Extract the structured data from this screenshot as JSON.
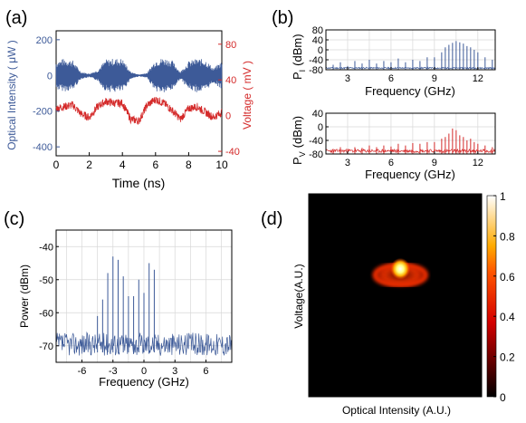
{
  "figure": {
    "colors": {
      "blue": "#3d5a98",
      "red": "#d42a2a",
      "grid": "#d8d8d8",
      "axis": "#000000"
    }
  },
  "chart_data": [
    {
      "id": "a",
      "panel_label": "(a)",
      "type": "line",
      "title": "",
      "xlabel": "Time (ns)",
      "ylabel": "Optical Intensity ( μW )",
      "ylabel_right": "Voltage ( mV )",
      "xlim": [
        0,
        10
      ],
      "ylim": [
        -450,
        250
      ],
      "ylim_right": [
        -45,
        95
      ],
      "xticks": [
        "0",
        "2",
        "4",
        "6",
        "8",
        "10"
      ],
      "yticks": [
        "200",
        "0",
        "-200",
        "-400"
      ],
      "yticks_right": [
        "80",
        "40",
        "0",
        "-40"
      ],
      "grid": false,
      "series": [
        {
          "axis": "left",
          "color": "#3d5a98",
          "x": [
            0,
            0.5,
            1,
            1.5,
            2,
            2.5,
            3,
            3.5,
            4,
            4.5,
            5,
            5.5,
            6,
            6.5,
            7,
            7.5,
            8,
            8.5,
            9,
            9.5,
            10
          ],
          "y_upper": [
            80,
            95,
            85,
            20,
            10,
            30,
            90,
            95,
            95,
            20,
            5,
            15,
            90,
            100,
            85,
            20,
            80,
            95,
            90,
            40,
            80
          ],
          "y_lower": [
            -80,
            -90,
            -85,
            -20,
            -10,
            -30,
            -90,
            -95,
            -95,
            -20,
            -5,
            -15,
            -90,
            -100,
            -85,
            -20,
            -80,
            -95,
            -90,
            -40,
            -80
          ]
        },
        {
          "axis": "right",
          "color": "#d42a2a",
          "x": [
            0,
            0.5,
            1,
            1.5,
            2,
            2.5,
            3,
            3.5,
            4,
            4.5,
            5,
            5.5,
            6,
            6.5,
            7,
            7.5,
            8,
            8.5,
            9,
            9.5,
            10
          ],
          "y": [
            8,
            10,
            12,
            2,
            -2,
            10,
            16,
            14,
            14,
            -4,
            -6,
            12,
            18,
            14,
            6,
            -4,
            8,
            10,
            4,
            -2,
            4
          ]
        }
      ]
    },
    {
      "id": "b1",
      "panel_label": "(b)",
      "type": "bar",
      "title": "",
      "xlabel": "Frequency (GHz)",
      "ylabel": "P_I (dBm)",
      "ylabel_main": "P",
      "ylabel_sub": "I",
      "ylabel_unit": "(dBm)",
      "xlim": [
        1.5,
        13.2
      ],
      "ylim": [
        -80,
        80
      ],
      "xticks": [
        "3",
        "6",
        "9",
        "12"
      ],
      "yticks": [
        "80",
        "40",
        "0",
        "-40",
        "-80"
      ],
      "grid": true,
      "color": "#3d5a98",
      "x": [
        2,
        2.5,
        3,
        3.5,
        4,
        4.5,
        5,
        5.5,
        6,
        6.5,
        7,
        7.5,
        8,
        8.5,
        9,
        9.5,
        9.75,
        10,
        10.25,
        10.5,
        10.75,
        11,
        11.25,
        11.5,
        11.75,
        12,
        12.5,
        13
      ],
      "values": [
        -60,
        -50,
        -65,
        -45,
        -55,
        -40,
        -55,
        -45,
        -50,
        -35,
        -50,
        -40,
        -45,
        -30,
        -30,
        -10,
        10,
        20,
        28,
        35,
        30,
        25,
        15,
        10,
        0,
        -10,
        -30,
        -40
      ]
    },
    {
      "id": "b2",
      "panel_label": "",
      "type": "bar",
      "title": "",
      "xlabel": "Frequency (GHz)",
      "ylabel": "P_V (dBm)",
      "ylabel_main": "P",
      "ylabel_sub": "V",
      "ylabel_unit": "(dBm)",
      "xlim": [
        1.5,
        13.2
      ],
      "ylim": [
        -80,
        40
      ],
      "xticks": [
        "3",
        "6",
        "9",
        "12"
      ],
      "yticks": [
        "40",
        "0",
        "-40",
        "-80"
      ],
      "grid": true,
      "color": "#d42a2a",
      "x": [
        2,
        2.5,
        3,
        3.5,
        4,
        4.5,
        5,
        5.5,
        6,
        6.5,
        7,
        7.5,
        8,
        8.5,
        9,
        9.5,
        9.75,
        10,
        10.25,
        10.5,
        10.75,
        11,
        11.25,
        11.5,
        11.75,
        12,
        12.5,
        13
      ],
      "values": [
        -65,
        -60,
        -65,
        -60,
        -62,
        -55,
        -60,
        -55,
        -58,
        -50,
        -55,
        -48,
        -50,
        -45,
        -45,
        -35,
        -30,
        -20,
        -5,
        -10,
        -25,
        -30,
        -40,
        -35,
        -45,
        -50,
        -55,
        -60
      ]
    },
    {
      "id": "c",
      "panel_label": "(c)",
      "type": "bar",
      "title": "",
      "xlabel": "Frequency (GHz)",
      "ylabel": "Power (dBm)",
      "xlim": [
        -8.5,
        8.5
      ],
      "ylim": [
        -75,
        -35
      ],
      "xticks": [
        "-6",
        "-3",
        "0",
        "3",
        "6"
      ],
      "yticks": [
        "-40",
        "-50",
        "-60",
        "-70"
      ],
      "grid": true,
      "color": "#3d5a98",
      "noise_floor": -72,
      "x": [
        -4.5,
        -4.0,
        -3.5,
        -3.0,
        -2.5,
        -2.0,
        -1.5,
        -1.0,
        -0.5,
        0.0,
        0.5,
        1.0
      ],
      "values": [
        -61,
        -56,
        -48,
        -43,
        -44,
        -49,
        -55,
        -55,
        -50,
        -54,
        -45,
        -47
      ]
    },
    {
      "id": "d",
      "panel_label": "(d)",
      "type": "heatmap",
      "title": "",
      "xlabel": "Optical Intensity (A.U.)",
      "ylabel": "Voltage(A.U.)",
      "colorbar_range": [
        0,
        1
      ],
      "colorbar_ticks": [
        "1",
        "0.8",
        "0.6",
        "0.4",
        "0.2",
        "0"
      ],
      "colormap": "hot",
      "peak": {
        "x": 0.53,
        "y": 0.63,
        "value": 1.0
      },
      "ring": {
        "x": 0.53,
        "y": 0.6,
        "value": 0.45
      }
    }
  ]
}
